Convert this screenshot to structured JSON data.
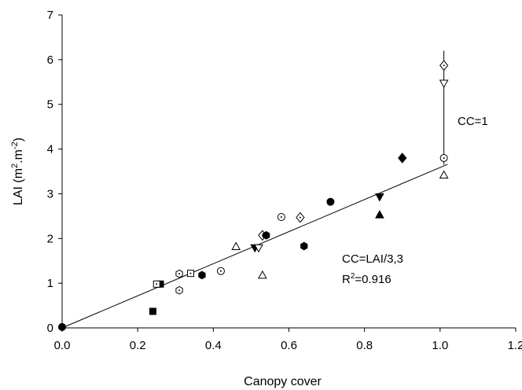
{
  "chart_data": {
    "type": "scatter",
    "xlabel": "Canopy cover",
    "ylabel_parts": [
      "LAI (m",
      "2",
      ".m",
      "-2",
      ")"
    ],
    "xlim": [
      0,
      1.2
    ],
    "ylim": [
      0,
      7
    ],
    "xticks": [
      "0.0",
      "0.2",
      "0.4",
      "0.6",
      "0.8",
      "1.0",
      "1.2"
    ],
    "yticks": [
      "0",
      "1",
      "2",
      "3",
      "4",
      "5",
      "6",
      "7"
    ],
    "grid": false,
    "fit_line": {
      "x": [
        0,
        1.02
      ],
      "y": [
        0,
        3.66
      ]
    },
    "vertical_segment": {
      "x": 1.01,
      "y": [
        3.65,
        6.2
      ]
    },
    "annotations": {
      "cc_one": "CC=1",
      "equation": "CC=LAI/3,3",
      "r2_parts": [
        "R",
        "2",
        "=0.916"
      ]
    },
    "points": [
      {
        "marker": "circle-filled",
        "x": 0.0,
        "y": 0.02
      },
      {
        "marker": "square-filled",
        "x": 0.24,
        "y": 0.37
      },
      {
        "marker": "square-filled",
        "x": 0.26,
        "y": 0.98
      },
      {
        "marker": "square-dot",
        "x": 0.25,
        "y": 0.98
      },
      {
        "marker": "square-dot",
        "x": 0.34,
        "y": 1.22
      },
      {
        "marker": "hexagon-dot",
        "x": 0.31,
        "y": 1.21
      },
      {
        "marker": "hexagon-dot",
        "x": 0.31,
        "y": 0.84
      },
      {
        "marker": "hexagon-filled",
        "x": 0.37,
        "y": 1.18
      },
      {
        "marker": "hexagon-filled",
        "x": 0.64,
        "y": 1.83
      },
      {
        "marker": "circle-dot",
        "x": 0.42,
        "y": 1.27
      },
      {
        "marker": "circle-dot",
        "x": 0.58,
        "y": 2.48
      },
      {
        "marker": "circle-dot",
        "x": 1.01,
        "y": 3.8
      },
      {
        "marker": "triangle-open",
        "x": 0.46,
        "y": 1.82
      },
      {
        "marker": "triangle-open",
        "x": 0.53,
        "y": 1.18
      },
      {
        "marker": "triangle-open",
        "x": 1.01,
        "y": 3.42
      },
      {
        "marker": "triangle-down-filled",
        "x": 0.51,
        "y": 1.79
      },
      {
        "marker": "triangle-down-filled",
        "x": 0.84,
        "y": 2.93
      },
      {
        "marker": "triangle-down-open",
        "x": 0.52,
        "y": 1.79
      },
      {
        "marker": "triangle-down-open",
        "x": 1.01,
        "y": 5.47
      },
      {
        "marker": "diamond-dot",
        "x": 0.53,
        "y": 2.07
      },
      {
        "marker": "diamond-dot",
        "x": 0.63,
        "y": 2.47
      },
      {
        "marker": "diamond-dot",
        "x": 1.01,
        "y": 5.87
      },
      {
        "marker": "hexagon-filled",
        "x": 0.54,
        "y": 2.07
      },
      {
        "marker": "circle-filled",
        "x": 0.71,
        "y": 2.82
      },
      {
        "marker": "triangle-filled",
        "x": 0.84,
        "y": 2.53
      },
      {
        "marker": "diamond-filled",
        "x": 0.9,
        "y": 3.8
      }
    ]
  }
}
